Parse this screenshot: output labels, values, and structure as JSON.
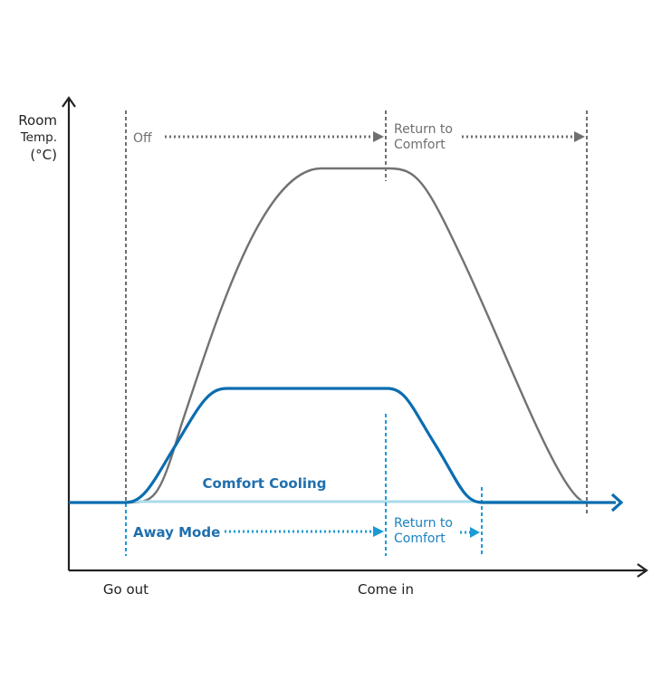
{
  "axis": {
    "y_label": [
      "Room",
      "Temp.",
      "(°C)"
    ],
    "x_markers": [
      "Go out",
      "Come in"
    ]
  },
  "grey_timeline": {
    "off_label": "Off",
    "return_label": [
      "Return to",
      "Comfort"
    ],
    "color": "#6f6f6f"
  },
  "blue_timeline": {
    "comfort_cooling_label": "Comfort Cooling",
    "away_mode_label": "Away Mode",
    "return_label": [
      "Return to",
      "Comfort"
    ],
    "color": "#0b6db0",
    "dotted_color": "#1a9ad6",
    "baseline_color": "#a9dbec"
  }
}
